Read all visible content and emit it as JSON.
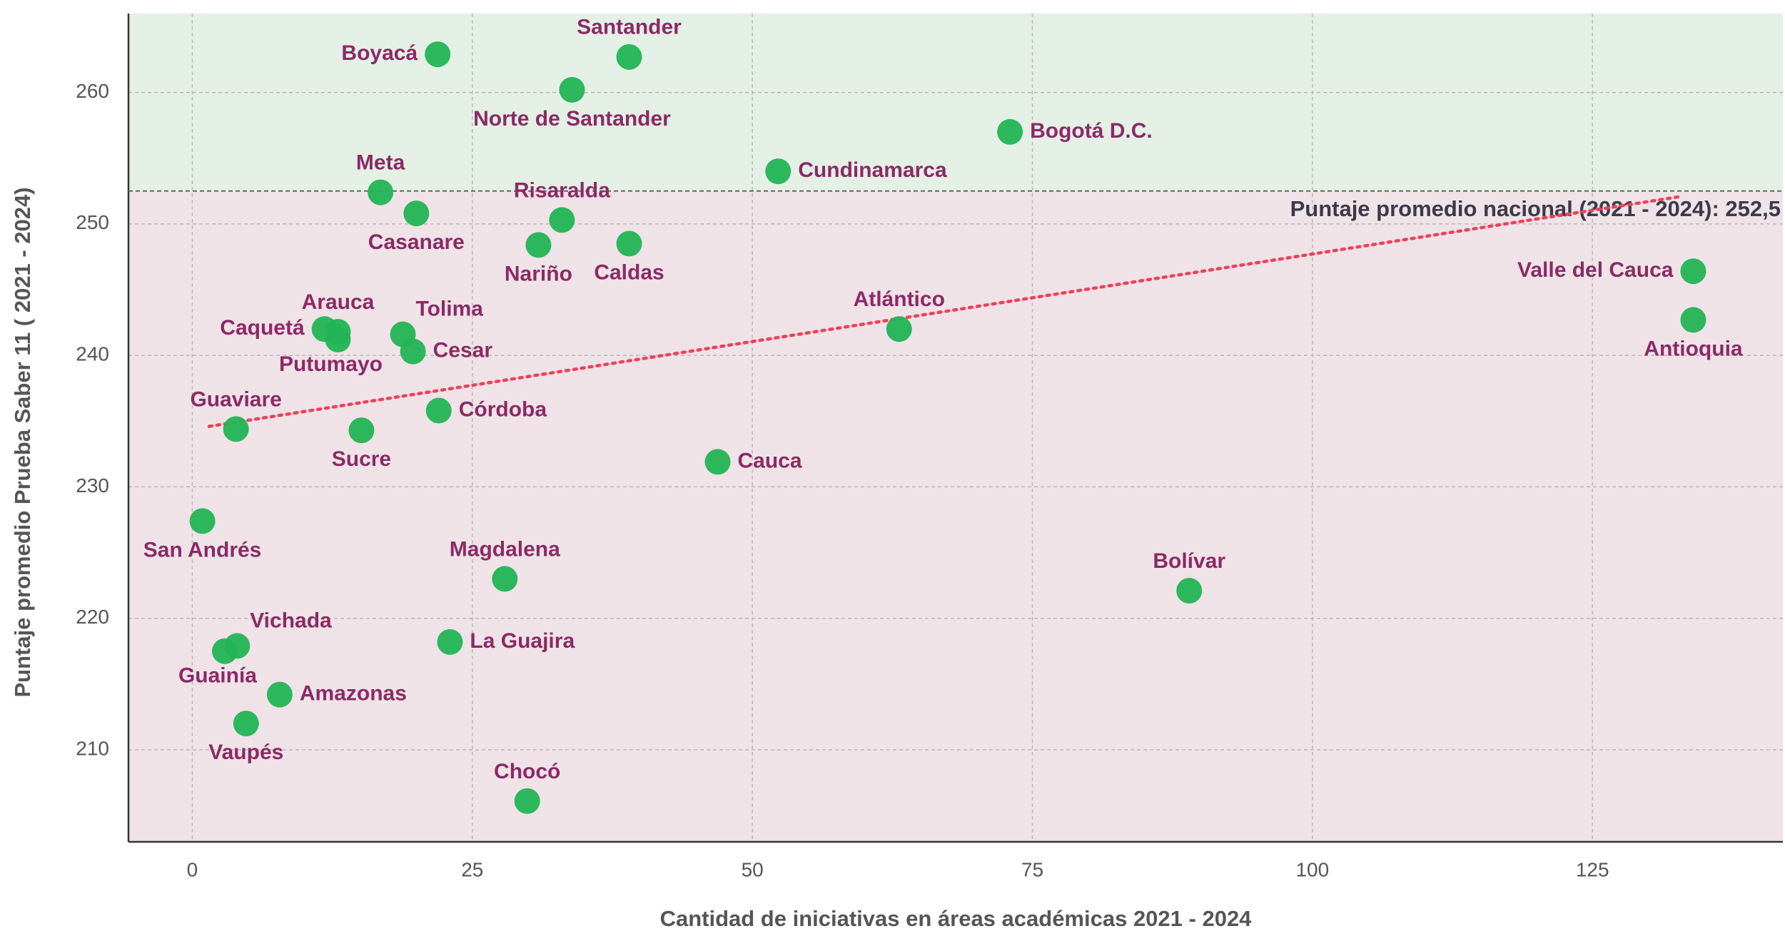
{
  "chart_data": {
    "type": "scatter",
    "xlabel": "Cantidad de iniciativas en áreas académicas 2021 - 2024",
    "ylabel": "Puntaje promedio Prueba Saber 11 ( 2021 - 2024)",
    "xlim": [
      -5.7,
      142
    ],
    "ylim": [
      203,
      266
    ],
    "xticks": [
      0,
      25,
      50,
      75,
      100,
      125
    ],
    "yticks": [
      210,
      220,
      230,
      240,
      250,
      260
    ],
    "grid": true,
    "color": "#22b455",
    "reference_line": {
      "value": 252.5,
      "label": "Puntaje promedio nacional (2021 - 2024): 252,5"
    },
    "trendline": {
      "color": "#f0405a",
      "x": [
        1.5,
        133
      ],
      "y": [
        234.6,
        252.1
      ]
    },
    "labels": [
      "Boyacá",
      "Santander",
      "Norte de Santander",
      "Bogotá D.C.",
      "Cundinamarca",
      "Meta",
      "Casanare",
      "Risaralda",
      "Nariño",
      "Caldas",
      "Valle del Cauca",
      "Antioquia",
      "Atlántico",
      "Caquetá",
      "Arauca",
      "Putumayo",
      "Tolima",
      "Cesar",
      "Guaviare",
      "Sucre",
      "Córdoba",
      "Cauca",
      "San Andrés",
      "Magdalena",
      "Bolívar",
      "Vichada",
      "Guainía",
      "La Guajira",
      "Amazonas",
      "Vaupés",
      "Chocó"
    ],
    "x": [
      21.9,
      39.0,
      33.9,
      73.0,
      52.3,
      16.8,
      20.0,
      33.0,
      30.9,
      39.0,
      134.0,
      134.0,
      63.1,
      11.8,
      13.0,
      13.0,
      18.8,
      19.7,
      3.9,
      15.1,
      22.0,
      46.9,
      0.9,
      27.9,
      89.0,
      4.0,
      2.9,
      23.0,
      7.8,
      4.8,
      29.9
    ],
    "y": [
      262.9,
      262.7,
      260.2,
      257.0,
      254.0,
      252.4,
      250.8,
      250.3,
      248.4,
      248.5,
      246.4,
      242.7,
      242.0,
      242.0,
      241.8,
      241.2,
      241.6,
      240.3,
      234.4,
      234.3,
      235.8,
      231.9,
      227.4,
      223.0,
      222.1,
      217.9,
      217.5,
      218.2,
      214.2,
      212.0,
      206.1
    ]
  }
}
